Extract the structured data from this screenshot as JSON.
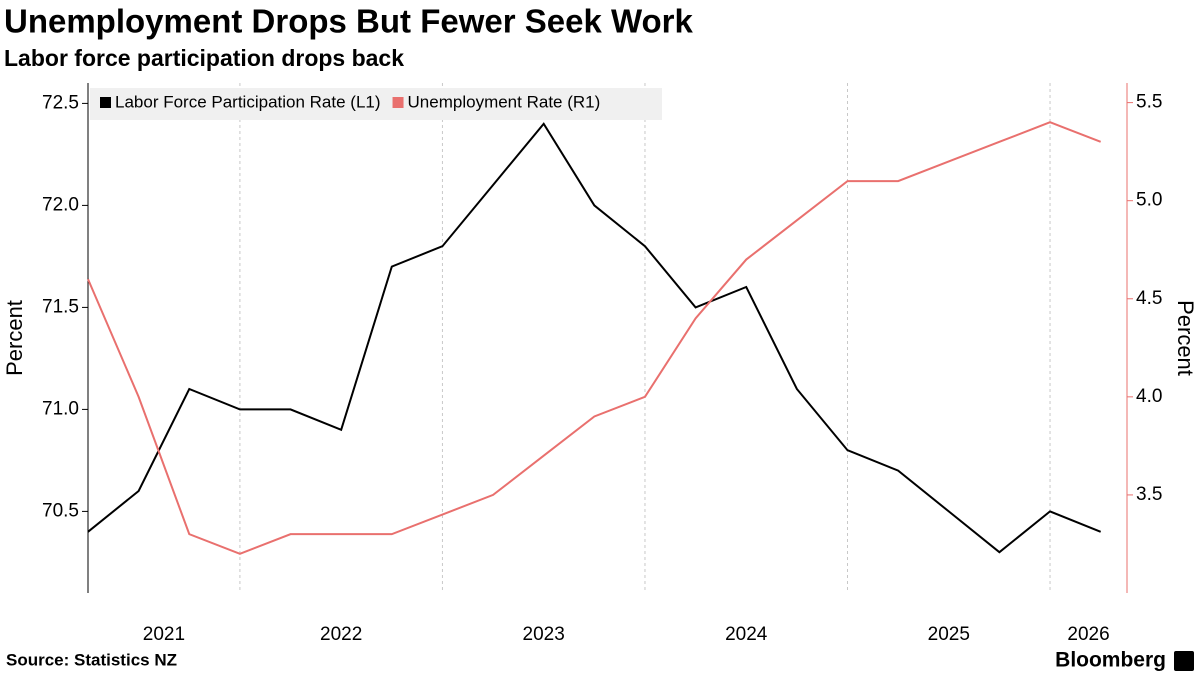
{
  "chart_data": {
    "type": "line",
    "title": "Unemployment Drops But Fewer Seek Work",
    "subtitle": "Labor force participation drops back",
    "source": "Source: Statistics NZ",
    "brand": "Bloomberg",
    "ylabel": "Percent",
    "y2label": "Percent",
    "x": [
      2021.25,
      2021.5,
      2021.75,
      2022,
      2022.25,
      2022.5,
      2022.75,
      2023,
      2023.25,
      2023.5,
      2023.75,
      2024,
      2024.25,
      2024.5,
      2024.75,
      2025,
      2025.25,
      2025.5,
      2025.75,
      2026,
      2026.25
    ],
    "series": [
      {
        "name": "Labor Force Participation Rate (L1)",
        "color": "#000000",
        "axis": "y",
        "values": [
          70.4,
          70.6,
          71.1,
          71.0,
          71.0,
          70.9,
          71.7,
          71.8,
          72.1,
          72.4,
          72.0,
          71.8,
          71.5,
          71.6,
          71.1,
          70.8,
          70.7,
          70.5,
          70.3,
          70.5,
          70.4
        ]
      },
      {
        "name": "Unemployment Rate (R1)",
        "color": "#e9706e",
        "axis": "y2",
        "values": [
          4.6,
          4.0,
          3.3,
          3.2,
          3.3,
          3.3,
          3.3,
          3.4,
          3.5,
          3.7,
          3.9,
          4.0,
          4.4,
          4.7,
          4.9,
          5.1,
          5.1,
          5.2,
          5.3,
          5.4,
          5.3
        ]
      }
    ],
    "xlim": [
      2021.25,
      2026.38
    ],
    "xticks": [
      2021,
      2022,
      2023,
      2024,
      2025,
      2026
    ],
    "ylim": [
      70.1,
      72.6
    ],
    "yticks": [
      70.5,
      {
        "value": 71,
        "label": "71.0"
      },
      71.5,
      {
        "value": 72,
        "label": "72.0"
      },
      72.5
    ],
    "y2lim": [
      3.0,
      5.6
    ],
    "y2ticks": [
      3.5,
      {
        "value": 4,
        "label": "4.0"
      },
      4.5,
      {
        "value": 5,
        "label": "5.0"
      },
      5.5
    ],
    "y2color": "#e9706e",
    "xgrid": true
  }
}
